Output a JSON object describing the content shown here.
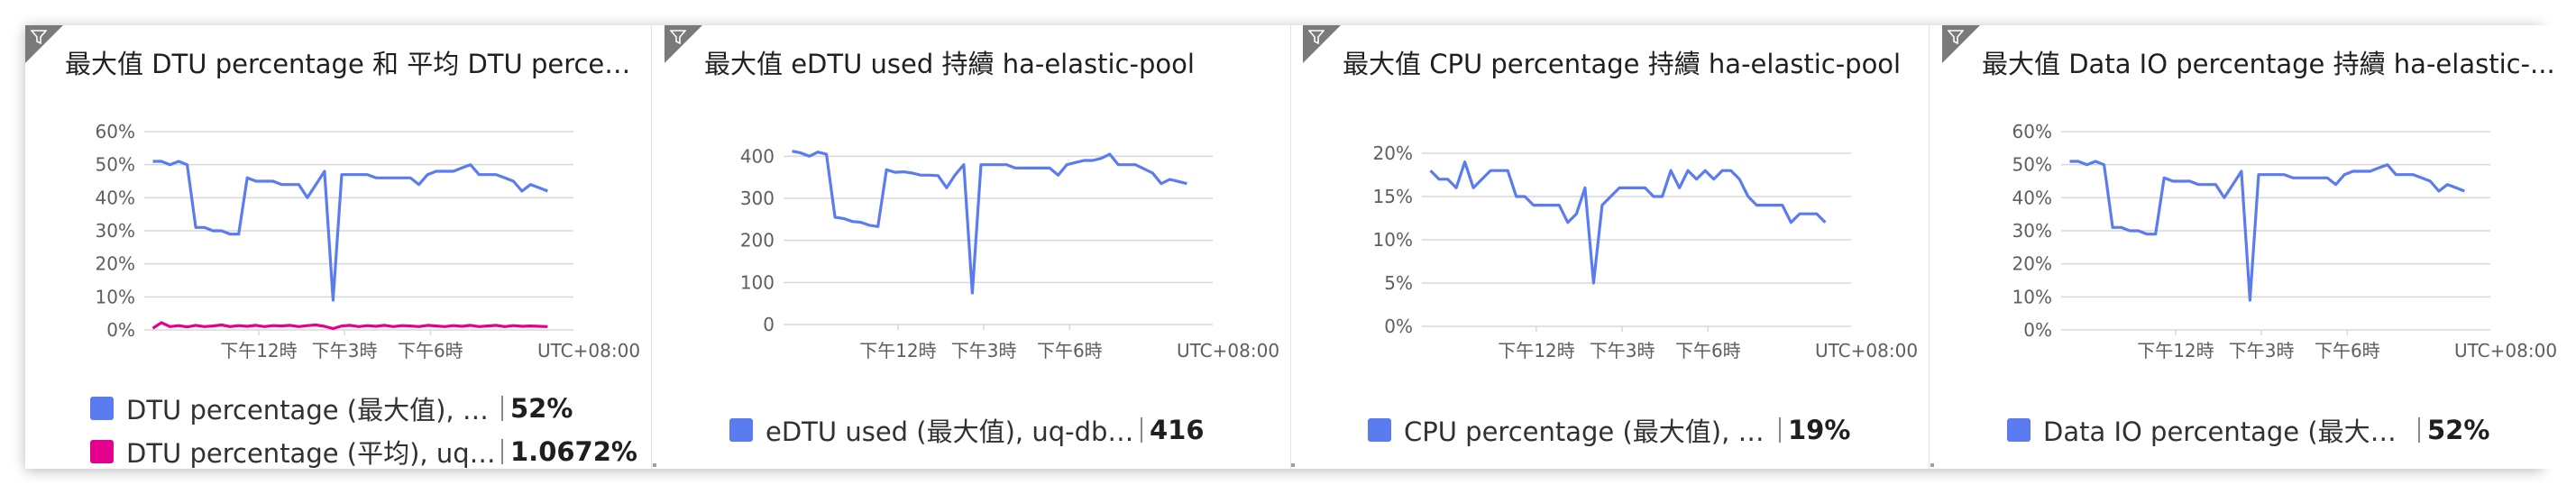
{
  "colors": {
    "blue": "#5b7cf0",
    "magenta": "#e3008c",
    "grid": "#d8d8d8",
    "axis": "#605e5c",
    "corner": "#7a7a7a"
  },
  "icons": {
    "filter": "filter-icon"
  },
  "tiles": [
    {
      "title": "最大值 DTU percentage 和 平均 DTU percen...",
      "legend": [
        {
          "name": "DTU percentage (最大值), uq-d...",
          "value": "52%",
          "color": "#5b7cf0"
        },
        {
          "name": "DTU percentage (平均), uq-...",
          "value": "1.0672%",
          "color": "#e3008c"
        }
      ]
    },
    {
      "title": "最大值 eDTU used 持續 ha-elastic-pool",
      "legend": [
        {
          "name": "eDTU used (最大值), uq-db1-v...",
          "value": "416",
          "color": "#5b7cf0"
        }
      ]
    },
    {
      "title": "最大值 CPU percentage 持續 ha-elastic-pool",
      "legend": [
        {
          "name": "CPU percentage (最大值), uq-d...",
          "value": "19%",
          "color": "#5b7cf0"
        }
      ]
    },
    {
      "title": "最大值 Data IO percentage 持續 ha-elastic-...",
      "legend": [
        {
          "name": "Data IO percentage (最大值), u...",
          "value": "52%",
          "color": "#5b7cf0"
        }
      ]
    }
  ],
  "chart_data": [
    {
      "type": "line",
      "title": "最大值 DTU percentage 和 平均 DTU percen...",
      "ylim": [
        0,
        60
      ],
      "yticks": [
        "0%",
        "10%",
        "20%",
        "30%",
        "40%",
        "50%",
        "60%"
      ],
      "yticks_values": [
        0,
        10,
        20,
        30,
        40,
        50,
        60
      ],
      "xticks": [
        "下午12時",
        "下午3時",
        "下午6時"
      ],
      "xticks_pos": [
        12,
        15,
        18
      ],
      "timezone_label": "UTC+08:00",
      "x_start": 8.3,
      "x_step": 0.3,
      "series": [
        {
          "name": "DTU percentage (最大值), uq-d...",
          "color": "#5b7cf0",
          "values": [
            51,
            51,
            50,
            51,
            50,
            31,
            31,
            30,
            30,
            29,
            29,
            46,
            45,
            45,
            45,
            44,
            44,
            44,
            40,
            44,
            48,
            9,
            47,
            47,
            47,
            47,
            46,
            46,
            46,
            46,
            46,
            44,
            47,
            48,
            48,
            48,
            49,
            50,
            47,
            47,
            47,
            46,
            45,
            42,
            44,
            43,
            42
          ]
        },
        {
          "name": "DTU percentage (平均), uq-...",
          "color": "#e3008c",
          "values": [
            0.5,
            2.2,
            1.0,
            1.3,
            0.9,
            1.4,
            1.0,
            1.2,
            1.5,
            1.0,
            1.3,
            1.1,
            1.4,
            1.0,
            1.3,
            1.2,
            1.4,
            1.0,
            1.3,
            1.5,
            1.1,
            0.4,
            1.2,
            1.4,
            1.0,
            1.3,
            1.1,
            1.4,
            1.0,
            1.3,
            1.2,
            1.0,
            1.4,
            1.2,
            1.0,
            1.3,
            1.1,
            1.4,
            1.0,
            1.2,
            1.4,
            1.0,
            1.3,
            1.1,
            1.2,
            1.1,
            1.0
          ]
        }
      ]
    },
    {
      "type": "line",
      "title": "最大值 eDTU used 持續 ha-elastic-pool",
      "ylim": [
        0,
        420
      ],
      "yticks": [
        "0",
        "100",
        "200",
        "300",
        "400"
      ],
      "yticks_values": [
        0,
        100,
        200,
        300,
        400
      ],
      "xticks": [
        "下午12時",
        "下午3時",
        "下午6時"
      ],
      "xticks_pos": [
        12,
        15,
        18
      ],
      "timezone_label": "UTC+08:00",
      "x_start": 8.3,
      "x_step": 0.3,
      "series": [
        {
          "name": "eDTU used (最大值), uq-db1-v...",
          "color": "#5b7cf0",
          "values": [
            412,
            408,
            400,
            410,
            405,
            255,
            252,
            245,
            243,
            236,
            233,
            368,
            362,
            363,
            360,
            355,
            355,
            354,
            325,
            356,
            380,
            75,
            380,
            380,
            380,
            380,
            372,
            372,
            372,
            372,
            372,
            355,
            380,
            385,
            390,
            390,
            395,
            405,
            380,
            380,
            380,
            370,
            360,
            335,
            345,
            340,
            335
          ]
        }
      ]
    },
    {
      "type": "line",
      "title": "最大值 CPU percentage 持續 ha-elastic-pool",
      "ylim": [
        0,
        20
      ],
      "yticks": [
        "0%",
        "5%",
        "10%",
        "15%",
        "20%"
      ],
      "yticks_values": [
        0,
        5,
        10,
        15,
        20
      ],
      "xticks": [
        "下午12時",
        "下午3時",
        "下午6時"
      ],
      "xticks_pos": [
        12,
        15,
        18
      ],
      "timezone_label": "UTC+08:00",
      "x_start": 8.3,
      "x_step": 0.3,
      "series": [
        {
          "name": "CPU percentage (最大值), uq-d...",
          "color": "#5b7cf0",
          "values": [
            18,
            17,
            17,
            16,
            19,
            16,
            17,
            18,
            18,
            18,
            15,
            15,
            14,
            14,
            14,
            14,
            12,
            13,
            16,
            5,
            14,
            15,
            16,
            16,
            16,
            16,
            15,
            15,
            18,
            16,
            18,
            17,
            18,
            17,
            18,
            18,
            17,
            15,
            14,
            14,
            14,
            14,
            12,
            13,
            13,
            13,
            12
          ]
        }
      ]
    },
    {
      "type": "line",
      "title": "最大值 Data IO percentage 持續 ha-elastic-...",
      "ylim": [
        0,
        60
      ],
      "yticks": [
        "0%",
        "10%",
        "20%",
        "30%",
        "40%",
        "50%",
        "60%"
      ],
      "yticks_values": [
        0,
        10,
        20,
        30,
        40,
        50,
        60
      ],
      "xticks": [
        "下午12時",
        "下午3時",
        "下午6時"
      ],
      "xticks_pos": [
        12,
        15,
        18
      ],
      "timezone_label": "UTC+08:00",
      "x_start": 8.3,
      "x_step": 0.3,
      "series": [
        {
          "name": "Data IO percentage (最大值), u...",
          "color": "#5b7cf0",
          "values": [
            51,
            51,
            50,
            51,
            50,
            31,
            31,
            30,
            30,
            29,
            29,
            46,
            45,
            45,
            45,
            44,
            44,
            44,
            40,
            44,
            48,
            9,
            47,
            47,
            47,
            47,
            46,
            46,
            46,
            46,
            46,
            44,
            47,
            48,
            48,
            48,
            49,
            50,
            47,
            47,
            47,
            46,
            45,
            42,
            44,
            43,
            42
          ]
        }
      ]
    }
  ]
}
